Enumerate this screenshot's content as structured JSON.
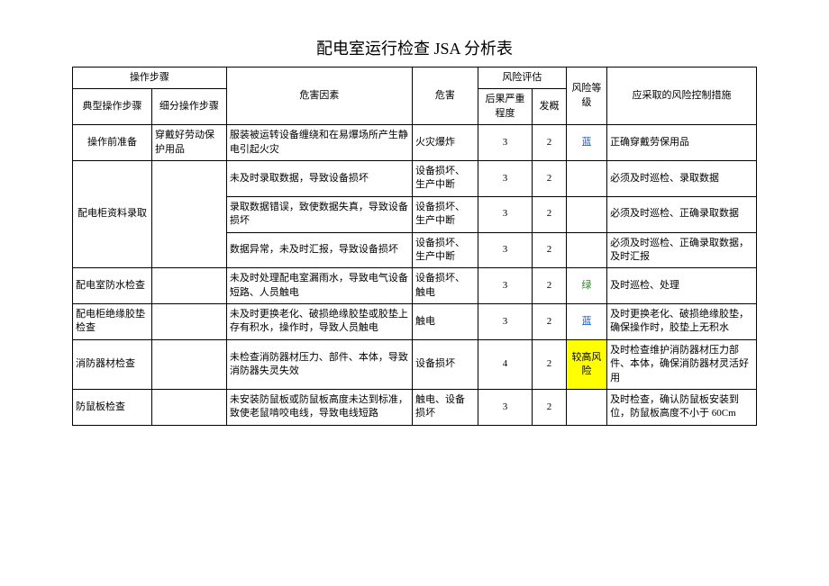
{
  "title": "配电室运行检查 JSA 分析表",
  "columns": {
    "c1": "操作步骤",
    "c1a": "典型操作步骤",
    "c1b": "细分操作步骤",
    "c2": "危害因素",
    "c3": "危害",
    "c4": "风险评估",
    "c4a": "后果严重程度",
    "c4b": "发概",
    "c5": "风险等级",
    "c6": "应采取的风险控制措施"
  },
  "rows": [
    {
      "step": "操作前准备",
      "sub": "穿戴好劳动保护用品",
      "hazard": "服装被运转设备缠绕和在易爆场所产生静电引起火灾",
      "harm": "火灾爆炸",
      "severity": "3",
      "prob": "2",
      "level": "蓝",
      "level_color": "risk-blue",
      "measure": "正确穿戴劳保用品"
    },
    {
      "step": "配电柜资料录取",
      "sub": "",
      "hazard": "未及时录取数据，导致设备损坏",
      "harm": "设备损坏、生产中断",
      "severity": "3",
      "prob": "2",
      "level": "",
      "measure": "必须及时巡检、录取数据"
    },
    {
      "step": "",
      "sub": "",
      "hazard": "录取数据错误，致使数据失真，导致设备损坏",
      "harm": "设备损坏、生产中断",
      "severity": "3",
      "prob": "2",
      "level": "",
      "measure": "必须及时巡检、正确录取数据"
    },
    {
      "step": "",
      "sub": "",
      "hazard": "数据异常，未及时汇报，导致设备损坏",
      "harm": "设备损坏、生产中断",
      "severity": "3",
      "prob": "2",
      "level": "",
      "measure": "必须及时巡检、正确录取数据，及时汇报"
    },
    {
      "step": "配电室防水检查",
      "sub": "",
      "hazard": "未及时处理配电室漏雨水，导致电气设备短路、人员触电",
      "harm": "设备损坏、触电",
      "severity": "3",
      "prob": "2",
      "level": "绿",
      "level_color": "risk-green",
      "measure": "及时巡检、处理"
    },
    {
      "step": "配电柜绝缘胶垫检查",
      "sub": "",
      "hazard": "未及时更换老化、破损绝缘胶垫或胶垫上存有积水，操作时，导致人员触电",
      "harm": "触电",
      "severity": "3",
      "prob": "2",
      "level": "蓝",
      "level_color": "risk-blue",
      "measure": "及时更换老化、破损绝缘胶垫，确保操作时，胶垫上无积水"
    },
    {
      "step": "消防器材检查",
      "sub": "",
      "hazard": "未检查消防器材压力、部件、本体，导致消防器失灵失效",
      "harm": "设备损坏",
      "severity": "4",
      "prob": "2",
      "level": "较高风险",
      "level_hl": "hl-yellow",
      "measure": "及时检查维护消防器材压力部件、本体，确保消防器材灵活好用"
    },
    {
      "step": "防鼠板检查",
      "sub": "",
      "hazard": "未安装防鼠板或防鼠板高度未达到标准，致使老鼠啃咬电线，导致电线短路",
      "harm": "触电、设备损坏",
      "severity": "3",
      "prob": "2",
      "level": "",
      "measure": "及时检查，确认防鼠板安装到位，防鼠板高度不小于 60Cm"
    }
  ]
}
